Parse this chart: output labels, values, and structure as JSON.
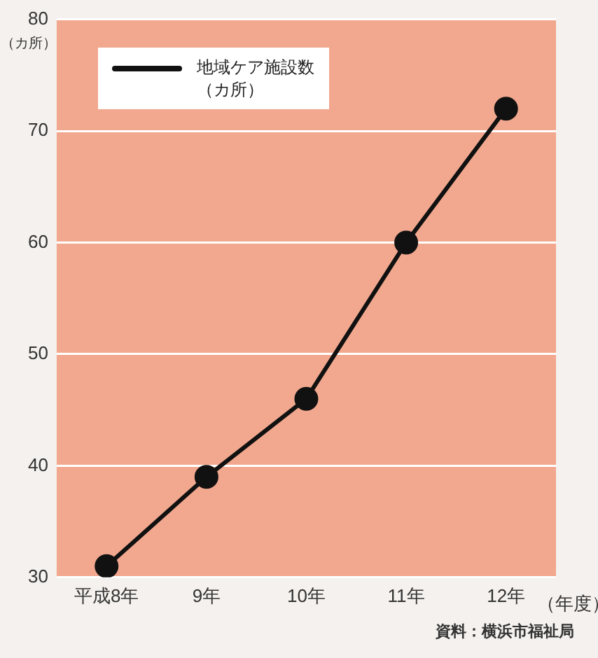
{
  "chart_data": {
    "type": "line",
    "ylabel": "（カ所）",
    "xlabel": "（年度）",
    "categories": [
      "平成8年",
      "9年",
      "10年",
      "11年",
      "12年"
    ],
    "series": [
      {
        "name": "地域ケア施設数（カ所）",
        "color": "#111111",
        "values": [
          31,
          39,
          46,
          60,
          72
        ]
      }
    ],
    "ylim": [
      30,
      80
    ],
    "yticks": [
      30,
      40,
      50,
      60,
      70,
      80
    ],
    "grid": "y",
    "legend": "top left",
    "marker": "circle",
    "line_style": "solid",
    "annotations": [
      "資料：横浜市福祉局"
    ]
  }
}
